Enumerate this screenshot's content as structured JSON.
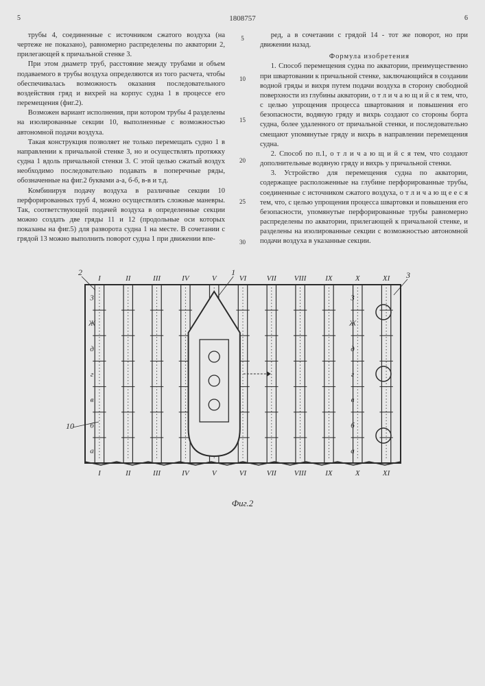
{
  "header": {
    "page_left": "5",
    "patent_number": "1808757",
    "page_right": "6"
  },
  "left_column": {
    "p1": "трубы 4, соединенные с источником сжатого воздуха (на чертеже не показано), равномерно распределены по акватории 2, прилегающей к причальной стенке 3.",
    "p2": "При этом диаметр труб, расстояние между трубами и объем подаваемого в трубы воздуха определяются из того расчета, чтобы обеспечивалась возможность оказания последовательного воздействия гряд и вихрей на корпус судна 1 в процессе его перемещения (фиг.2).",
    "p3": "Возможен вариант исполнения, при котором трубы 4 разделены на изолированные секции 10, выполненные с возможностью автономной подачи воздуха.",
    "p4": "Такая конструкция позволяет не только перемещать судно 1 в направлении к причальной стенке 3, но и осуществлять протяжку судна 1 вдоль причальной стенки 3. С этой целью сжатый воздух необходимо последовательно подавать в поперечные ряды, обозначенные на фиг.2 буквами а-а, б-б, в-в и т.д.",
    "p5": "Комбинируя подачу воздуха в различные секции 10 перфорированных труб 4, можно осуществлять сложные маневры. Так, соответствующей подачей воздуха в определенные секции можно создать две гряды 11 и 12 (продольные оси которых показаны на фиг.5) для разворота судна 1 на месте. В сочетании с грядой 13 можно выполнить поворот судна 1 при движении впе-"
  },
  "right_column": {
    "p1": "ред, а в сочетании с грядой 14 - тот же поворот, но при движении назад.",
    "formula_title": "Формула изобретения",
    "claim1": "1. Способ перемещения судна по акватории, преимущественно при швартовании к причальной стенке, заключающийся в создании водной гряды и вихря путем подачи воздуха в сторону свободной поверхности из глубины акватории, о т л и ч а ю щ и й с я тем, что, с целью упрощения процесса швартования и повышения его безопасности, водяную гряду и вихрь создают со стороны борта судна, более удаленного от причальной стенки, и последовательно смещают упомянутые гряду и вихрь в направлении перемещения судна.",
    "claim2": "2. Способ по п.1, о т л и ч а ю щ и й с я тем, что создают дополнительные водяную гряду и вихрь у причальной стенки.",
    "claim3": "3. Устройство для перемещения судна по акватории, содержащее расположенные на глубине перфорированные трубы, соединенные с источником сжатого воздуха, о т л и ч а ю щ е е с я тем, что, с целью упрощения процесса швартовки и повышения его безопасности, упомянутые перфорированные трубы равномерно распределены по акватории, прилегающей к причальной стенке, и разделены на изолированные секции с возможностью автономной подачи воздуха в указанные секции."
  },
  "line_markers": [
    "5",
    "10",
    "15",
    "20",
    "25",
    "30"
  ],
  "figure": {
    "label": "Фиг.2",
    "roman_top": [
      "I",
      "II",
      "III",
      "IV",
      "V",
      "VI",
      "VII",
      "VIII",
      "IX",
      "X",
      "XI"
    ],
    "roman_bottom": [
      "I",
      "II",
      "III",
      "IV",
      "V",
      "VI",
      "VII",
      "VIII",
      "IX",
      "X",
      "XI"
    ],
    "row_labels_left": [
      "а",
      "б",
      "в",
      "г",
      "д",
      "Ж",
      "3"
    ],
    "row_labels_right": [
      "а",
      "б",
      "в",
      "г",
      "д",
      "Ж",
      "3"
    ],
    "callouts": {
      "top_2": "2",
      "top_1": "1",
      "top_3": "3",
      "left_10": "10"
    },
    "colors": {
      "line": "#2a2a2a",
      "bg": "#e8e8e8"
    },
    "num_columns": 11,
    "num_rows": 7,
    "mooring_circles_right": 3,
    "ship_circles": 3
  }
}
